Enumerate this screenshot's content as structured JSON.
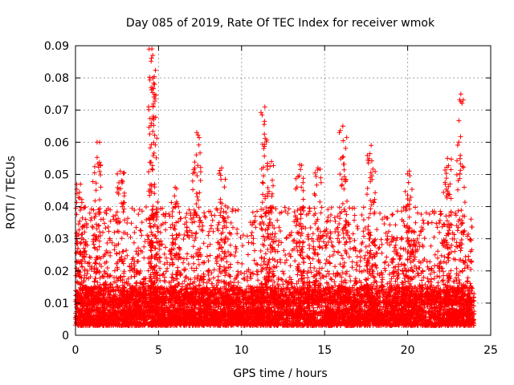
{
  "chart_data": {
    "type": "scatter",
    "title": "Day 085 of 2019, Rate Of TEC Index for receiver wmok",
    "xlabel": "GPS time / hours",
    "ylabel": "ROTI / TECUs",
    "xlim": [
      0,
      25
    ],
    "ylim": [
      0,
      0.09
    ],
    "x_ticks": [
      0,
      5,
      10,
      15,
      20,
      25
    ],
    "x_tick_labels": [
      "0",
      "5",
      "10",
      "15",
      "20",
      "25"
    ],
    "y_ticks": [
      0,
      0.01,
      0.02,
      0.03,
      0.04,
      0.05,
      0.06,
      0.07,
      0.08,
      0.09
    ],
    "y_tick_labels": [
      "0",
      "0.01",
      "0.02",
      "0.03",
      "0.04",
      "0.05",
      "0.06",
      "0.07",
      "0.08",
      "0.09"
    ],
    "grid": true,
    "marker": "+",
    "color": "#ff0000",
    "series": [
      {
        "name": "ROTI",
        "x_range": [
          0,
          24
        ],
        "typical_band": [
          0.003,
          0.015
        ],
        "peaks": [
          {
            "x": 0.3,
            "y": 0.047
          },
          {
            "x": 1.3,
            "y": 0.06
          },
          {
            "x": 2.7,
            "y": 0.051
          },
          {
            "x": 4.6,
            "y": 0.089
          },
          {
            "x": 4.65,
            "y": 0.087
          },
          {
            "x": 4.7,
            "y": 0.067
          },
          {
            "x": 6.0,
            "y": 0.046
          },
          {
            "x": 7.3,
            "y": 0.063
          },
          {
            "x": 8.8,
            "y": 0.052
          },
          {
            "x": 11.4,
            "y": 0.071
          },
          {
            "x": 11.8,
            "y": 0.054
          },
          {
            "x": 13.5,
            "y": 0.053
          },
          {
            "x": 14.6,
            "y": 0.052
          },
          {
            "x": 16.1,
            "y": 0.065
          },
          {
            "x": 17.8,
            "y": 0.059
          },
          {
            "x": 20.1,
            "y": 0.051
          },
          {
            "x": 22.4,
            "y": 0.055
          },
          {
            "x": 23.2,
            "y": 0.075
          }
        ]
      }
    ]
  }
}
